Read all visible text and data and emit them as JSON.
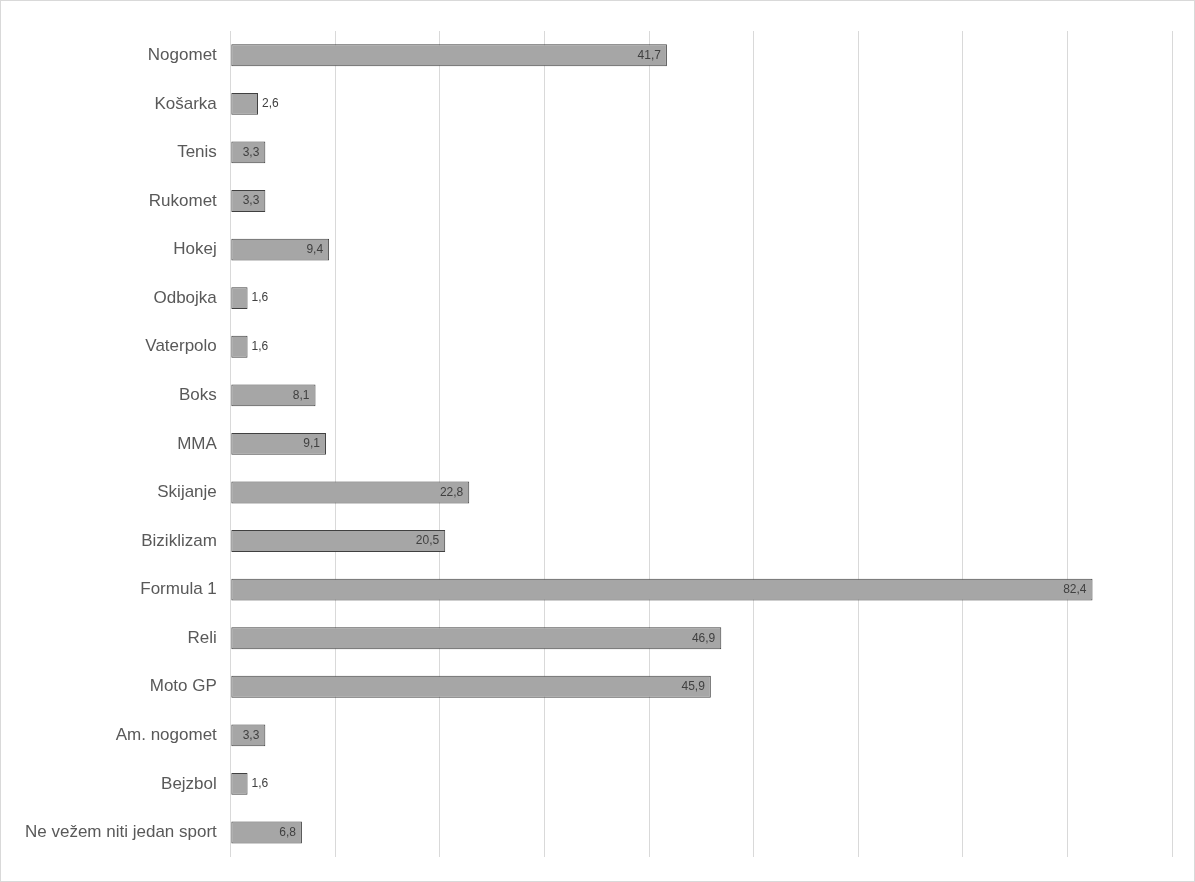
{
  "chart_data": {
    "type": "bar",
    "orientation": "horizontal",
    "categories": [
      "Nogomet",
      "Košarka",
      "Tenis",
      "Rukomet",
      "Hokej",
      "Odbojka",
      "Vaterpolo",
      "Boks",
      "MMA",
      "Skijanje",
      "Biziklizam",
      "Formula 1",
      "Reli",
      "Moto GP",
      "Am. nogomet",
      "Bejzbol",
      "Ne vežem niti jedan sport"
    ],
    "values": [
      41.7,
      2.6,
      3.3,
      3.3,
      9.4,
      1.6,
      1.6,
      8.1,
      9.1,
      22.8,
      20.5,
      82.4,
      46.9,
      45.9,
      3.3,
      1.6,
      6.8
    ],
    "value_labels": [
      "41,7",
      "2,6",
      "3,3",
      "3,3",
      "9,4",
      "1,6",
      "1,6",
      "8,1",
      "9,1",
      "22,8",
      "20,5",
      "82,4",
      "46,9",
      "45,9",
      "3,3",
      "1,6",
      "6,8"
    ],
    "color": "#a6a6a6",
    "xlim": [
      0,
      90
    ],
    "xticks": [
      {
        "value": 0,
        "label": null
      },
      {
        "value": 10,
        "label": null
      },
      {
        "value": 20,
        "label": null
      },
      {
        "value": 30,
        "label": null
      },
      {
        "value": 40,
        "label": null
      },
      {
        "value": 50,
        "label": null
      },
      {
        "value": 60,
        "label": null
      },
      {
        "value": 70,
        "label": null
      },
      {
        "value": 80,
        "label": null
      },
      {
        "value": 90,
        "label": null
      }
    ],
    "grid": "x",
    "tick_labels": "y",
    "legend": false
  }
}
